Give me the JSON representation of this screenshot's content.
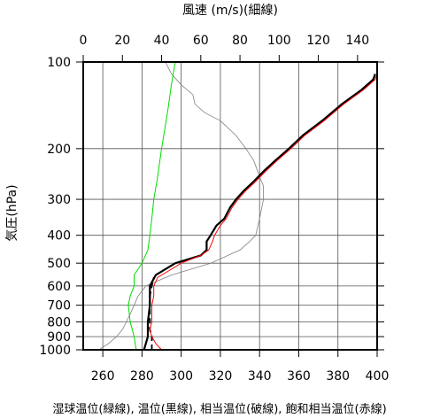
{
  "chart_data": {
    "type": "line",
    "title": "",
    "top_axis": {
      "label": "風速 (m/s)(細線)",
      "range": [
        0,
        150
      ],
      "ticks": [
        0,
        20,
        40,
        60,
        80,
        100,
        120,
        140
      ]
    },
    "bottom_axis": {
      "label": "湿球温位(緑線), 温位(黒線), 相当温位(破線), 飽和相当温位(赤線)",
      "range": [
        250,
        400
      ],
      "ticks": [
        260,
        280,
        300,
        320,
        340,
        360,
        380,
        400
      ]
    },
    "y_axis": {
      "label": "気圧(hPa)",
      "scale": "log",
      "inverted": true,
      "range": [
        1000,
        100
      ],
      "ticks": [
        100,
        200,
        300,
        400,
        500,
        600,
        700,
        800,
        900,
        1000
      ]
    },
    "grid": true,
    "series": [
      {
        "name": "風速",
        "axis": "top",
        "color": "#808080",
        "style": "thin",
        "points": [
          {
            "p": 1000,
            "x": 8
          },
          {
            "p": 950,
            "x": 13
          },
          {
            "p": 900,
            "x": 17
          },
          {
            "p": 850,
            "x": 20
          },
          {
            "p": 800,
            "x": 22
          },
          {
            "p": 750,
            "x": 24
          },
          {
            "p": 700,
            "x": 26
          },
          {
            "p": 650,
            "x": 28
          },
          {
            "p": 600,
            "x": 32
          },
          {
            "p": 550,
            "x": 45
          },
          {
            "p": 500,
            "x": 65
          },
          {
            "p": 450,
            "x": 80
          },
          {
            "p": 420,
            "x": 85
          },
          {
            "p": 400,
            "x": 88
          },
          {
            "p": 350,
            "x": 90
          },
          {
            "p": 300,
            "x": 92
          },
          {
            "p": 270,
            "x": 92
          },
          {
            "p": 250,
            "x": 90
          },
          {
            "p": 220,
            "x": 87
          },
          {
            "p": 200,
            "x": 83
          },
          {
            "p": 180,
            "x": 78
          },
          {
            "p": 160,
            "x": 70
          },
          {
            "p": 150,
            "x": 62
          },
          {
            "p": 140,
            "x": 57
          },
          {
            "p": 130,
            "x": 56
          },
          {
            "p": 120,
            "x": 50
          },
          {
            "p": 110,
            "x": 45
          },
          {
            "p": 100,
            "x": 42
          }
        ]
      },
      {
        "name": "湿球温位",
        "axis": "bottom",
        "color": "#00dd00",
        "points": [
          {
            "p": 1000,
            "x": 277
          },
          {
            "p": 900,
            "x": 276
          },
          {
            "p": 800,
            "x": 274
          },
          {
            "p": 700,
            "x": 273
          },
          {
            "p": 650,
            "x": 274
          },
          {
            "p": 600,
            "x": 276
          },
          {
            "p": 550,
            "x": 276
          },
          {
            "p": 500,
            "x": 280
          },
          {
            "p": 450,
            "x": 283
          },
          {
            "p": 400,
            "x": 284
          },
          {
            "p": 350,
            "x": 285
          },
          {
            "p": 300,
            "x": 286
          },
          {
            "p": 250,
            "x": 288
          },
          {
            "p": 200,
            "x": 290
          },
          {
            "p": 150,
            "x": 293
          },
          {
            "p": 120,
            "x": 295
          },
          {
            "p": 100,
            "x": 297
          }
        ]
      },
      {
        "name": "温位",
        "axis": "bottom",
        "color": "#000000",
        "style": "thick",
        "points": [
          {
            "p": 1000,
            "x": 281
          },
          {
            "p": 950,
            "x": 282
          },
          {
            "p": 900,
            "x": 283
          },
          {
            "p": 800,
            "x": 283
          },
          {
            "p": 700,
            "x": 284
          },
          {
            "p": 600,
            "x": 284
          },
          {
            "p": 550,
            "x": 287
          },
          {
            "p": 500,
            "x": 297
          },
          {
            "p": 470,
            "x": 310
          },
          {
            "p": 450,
            "x": 313
          },
          {
            "p": 420,
            "x": 313
          },
          {
            "p": 400,
            "x": 315
          },
          {
            "p": 370,
            "x": 318
          },
          {
            "p": 350,
            "x": 322
          },
          {
            "p": 320,
            "x": 325
          },
          {
            "p": 300,
            "x": 328
          },
          {
            "p": 280,
            "x": 332
          },
          {
            "p": 260,
            "x": 337
          },
          {
            "p": 240,
            "x": 342
          },
          {
            "p": 220,
            "x": 348
          },
          {
            "p": 200,
            "x": 355
          },
          {
            "p": 180,
            "x": 362
          },
          {
            "p": 160,
            "x": 372
          },
          {
            "p": 140,
            "x": 382
          },
          {
            "p": 125,
            "x": 392
          },
          {
            "p": 115,
            "x": 398
          },
          {
            "p": 110,
            "x": 399
          }
        ]
      },
      {
        "name": "相当温位",
        "axis": "bottom",
        "color": "#000000",
        "style": "dashed",
        "points": [
          {
            "p": 1000,
            "x": 285
          },
          {
            "p": 950,
            "x": 285
          },
          {
            "p": 900,
            "x": 285
          },
          {
            "p": 850,
            "x": 284
          },
          {
            "p": 800,
            "x": 284
          },
          {
            "p": 750,
            "x": 284
          },
          {
            "p": 700,
            "x": 284
          },
          {
            "p": 650,
            "x": 284
          },
          {
            "p": 600,
            "x": 285
          },
          {
            "p": 560,
            "x": 286
          }
        ]
      },
      {
        "name": "飽和相当温位",
        "axis": "bottom",
        "color": "#ff0000",
        "points": [
          {
            "p": 1000,
            "x": 290
          },
          {
            "p": 950,
            "x": 287
          },
          {
            "p": 900,
            "x": 285
          },
          {
            "p": 850,
            "x": 284
          },
          {
            "p": 800,
            "x": 285
          },
          {
            "p": 750,
            "x": 285
          },
          {
            "p": 700,
            "x": 285
          },
          {
            "p": 650,
            "x": 286
          },
          {
            "p": 600,
            "x": 286
          },
          {
            "p": 560,
            "x": 288
          },
          {
            "p": 540,
            "x": 292
          },
          {
            "p": 500,
            "x": 300
          },
          {
            "p": 470,
            "x": 310
          },
          {
            "p": 450,
            "x": 314
          },
          {
            "p": 420,
            "x": 316
          },
          {
            "p": 400,
            "x": 317
          },
          {
            "p": 370,
            "x": 320
          },
          {
            "p": 350,
            "x": 323
          },
          {
            "p": 320,
            "x": 326
          },
          {
            "p": 300,
            "x": 329
          },
          {
            "p": 280,
            "x": 333
          },
          {
            "p": 260,
            "x": 338
          },
          {
            "p": 240,
            "x": 343
          },
          {
            "p": 220,
            "x": 349
          },
          {
            "p": 200,
            "x": 356
          },
          {
            "p": 180,
            "x": 363
          },
          {
            "p": 160,
            "x": 373
          },
          {
            "p": 140,
            "x": 383
          },
          {
            "p": 125,
            "x": 393
          },
          {
            "p": 115,
            "x": 399
          },
          {
            "p": 110,
            "x": 400
          }
        ]
      }
    ]
  }
}
